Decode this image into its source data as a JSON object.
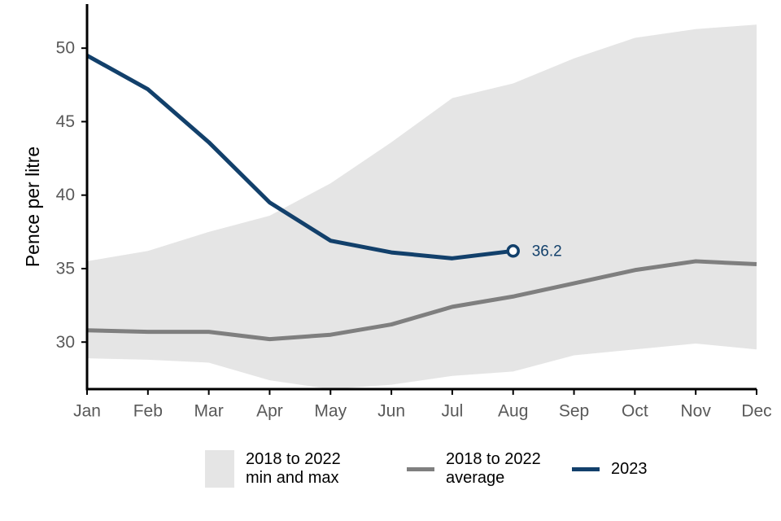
{
  "chart_data": {
    "type": "line",
    "y_label": "Pence per litre",
    "categories": [
      "Jan",
      "Feb",
      "Mar",
      "Apr",
      "May",
      "Jun",
      "Jul",
      "Aug",
      "Sep",
      "Oct",
      "Nov",
      "Dec"
    ],
    "ylim": [
      26.8,
      53
    ],
    "yticks": [
      30,
      35,
      40,
      45,
      50
    ],
    "series": [
      {
        "name": "2018 to 2022 min and max",
        "kind": "band",
        "color": "#e5e5e5",
        "values": [
          35.5,
          36.2,
          37.5,
          38.6,
          40.8,
          43.6,
          46.6,
          47.6,
          49.3,
          50.7,
          51.3,
          51.6
        ],
        "lower": [
          28.9,
          28.8,
          28.6,
          27.4,
          26.8,
          27.1,
          27.7,
          28.0,
          29.1,
          29.5,
          29.9,
          29.5
        ]
      },
      {
        "name": "2018 to 2022 average",
        "kind": "line",
        "color": "#7f7f7f",
        "values": [
          30.8,
          30.7,
          30.7,
          30.2,
          30.5,
          31.2,
          32.4,
          33.1,
          34.0,
          34.9,
          35.5,
          35.3
        ]
      },
      {
        "name": "2023",
        "kind": "line",
        "color": "#12406b",
        "end_label": true,
        "values": [
          49.5,
          47.2,
          43.6,
          39.5,
          36.9,
          36.1,
          35.7,
          36.2,
          null,
          null,
          null,
          null
        ]
      }
    ]
  }
}
